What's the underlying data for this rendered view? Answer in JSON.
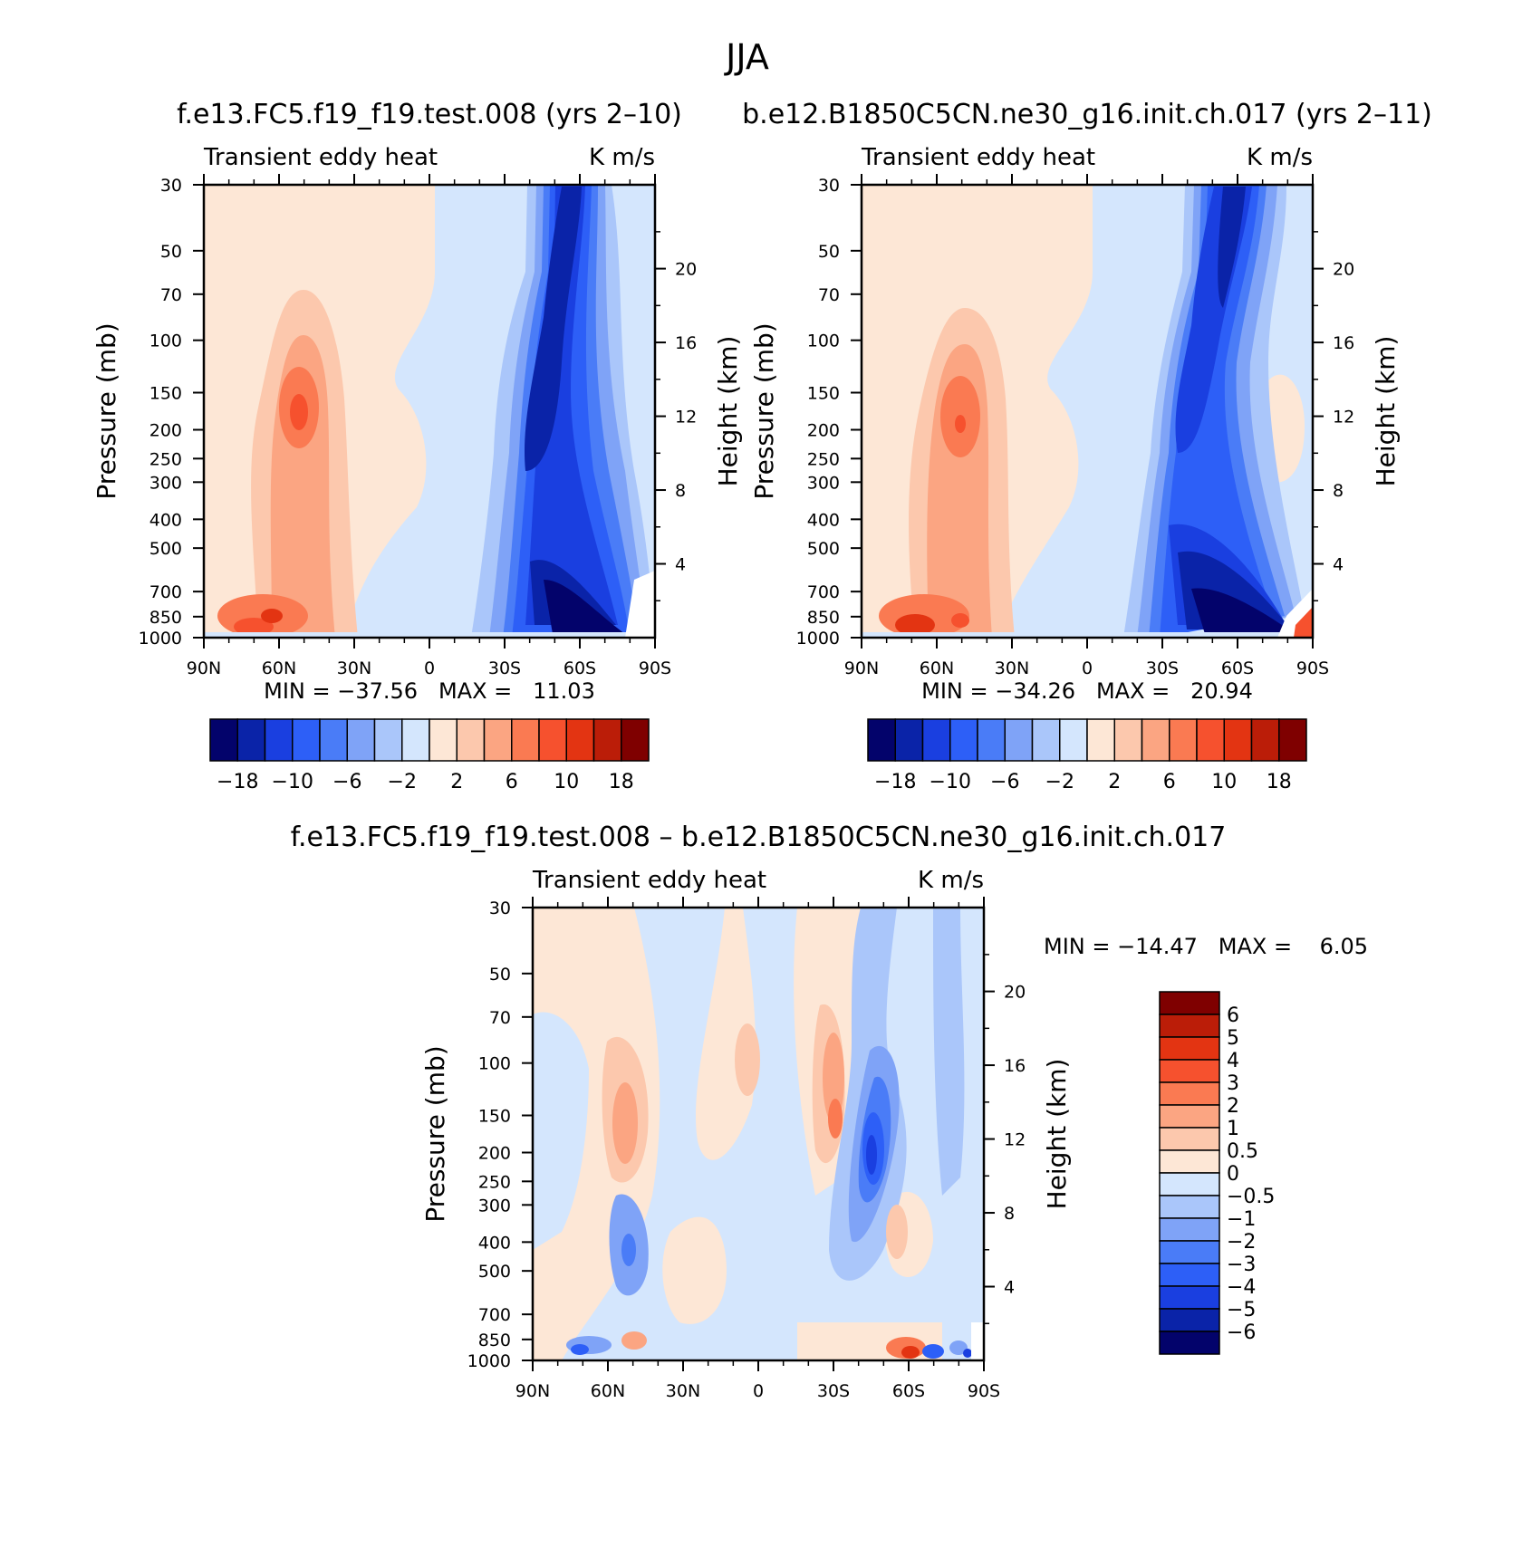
{
  "page": {
    "title": "JJA",
    "colors": {
      "frame": "#000000",
      "background": "#ffffff"
    }
  },
  "chart_data": [
    {
      "type": "heatmap",
      "name": "control",
      "title": "f.e13.FC5.f19_f19.test.008 (yrs 2–10)",
      "left_label": "Transient eddy heat",
      "right_label": "K m/s",
      "xlabel": "",
      "ylabel": "Pressure (mb)",
      "ylabel_right": "Height (km)",
      "x_ticks": [
        "90N",
        "60N",
        "30N",
        "0",
        "30S",
        "60S",
        "90S"
      ],
      "x_values": [
        90,
        60,
        30,
        0,
        -30,
        -60,
        -90
      ],
      "y_ticks": [
        "30",
        "50",
        "70",
        "100",
        "150",
        "200",
        "250",
        "300",
        "400",
        "500",
        "700",
        "850",
        "1000"
      ],
      "y_values": [
        30,
        50,
        70,
        100,
        150,
        200,
        250,
        300,
        400,
        500,
        700,
        850,
        1000
      ],
      "height_ticks": [
        "20",
        "16",
        "12",
        "8",
        "4"
      ],
      "height_values": [
        20,
        16,
        12,
        8,
        4
      ],
      "stats": "MIN = −37.56   MAX =   11.03",
      "min": -37.56,
      "max": 11.03,
      "colorbar": {
        "orientation": "horizontal",
        "labels": [
          "−18",
          "−10",
          "−6",
          "−2",
          "2",
          "6",
          "10",
          "18"
        ],
        "levels": [
          -22,
          -18,
          -14,
          -10,
          -8,
          -6,
          -4,
          -2,
          0,
          2,
          4,
          6,
          8,
          10,
          14,
          18,
          22
        ],
        "colors": [
          "#03036b",
          "#0a23a8",
          "#1a3fe0",
          "#2d5ff7",
          "#4a7cf7",
          "#7fa3f7",
          "#aac6fa",
          "#d4e6fd",
          "#fde7d6",
          "#fcc8ad",
          "#fba582",
          "#fa7a52",
          "#f6512e",
          "#e33412",
          "#bb1d08",
          "#7f0000"
        ]
      }
    },
    {
      "type": "heatmap",
      "name": "test",
      "title": "b.e12.B1850C5CN.ne30_g16.init.ch.017 (yrs 2–11)",
      "left_label": "Transient eddy heat",
      "right_label": "K m/s",
      "xlabel": "",
      "ylabel": "Pressure (mb)",
      "ylabel_right": "Height (km)",
      "x_ticks": [
        "90N",
        "60N",
        "30N",
        "0",
        "30S",
        "60S",
        "90S"
      ],
      "x_values": [
        90,
        60,
        30,
        0,
        -30,
        -60,
        -90
      ],
      "y_ticks": [
        "30",
        "50",
        "70",
        "100",
        "150",
        "200",
        "250",
        "300",
        "400",
        "500",
        "700",
        "850",
        "1000"
      ],
      "y_values": [
        30,
        50,
        70,
        100,
        150,
        200,
        250,
        300,
        400,
        500,
        700,
        850,
        1000
      ],
      "height_ticks": [
        "20",
        "16",
        "12",
        "8",
        "4"
      ],
      "height_values": [
        20,
        16,
        12,
        8,
        4
      ],
      "stats": "MIN = −34.26   MAX =   20.94",
      "min": -34.26,
      "max": 20.94,
      "colorbar": {
        "orientation": "horizontal",
        "labels": [
          "−18",
          "−10",
          "−6",
          "−2",
          "2",
          "6",
          "10",
          "18"
        ],
        "levels": [
          -22,
          -18,
          -14,
          -10,
          -8,
          -6,
          -4,
          -2,
          0,
          2,
          4,
          6,
          8,
          10,
          14,
          18,
          22
        ],
        "colors": [
          "#03036b",
          "#0a23a8",
          "#1a3fe0",
          "#2d5ff7",
          "#4a7cf7",
          "#7fa3f7",
          "#aac6fa",
          "#d4e6fd",
          "#fde7d6",
          "#fcc8ad",
          "#fba582",
          "#fa7a52",
          "#f6512e",
          "#e33412",
          "#bb1d08",
          "#7f0000"
        ]
      }
    },
    {
      "type": "heatmap",
      "name": "difference",
      "title": "f.e13.FC5.f19_f19.test.008 – b.e12.B1850C5CN.ne30_g16.init.ch.017",
      "left_label": "Transient eddy heat",
      "right_label": "K m/s",
      "xlabel": "",
      "ylabel": "Pressure (mb)",
      "ylabel_right": "Height (km)",
      "x_ticks": [
        "90N",
        "60N",
        "30N",
        "0",
        "30S",
        "60S",
        "90S"
      ],
      "x_values": [
        90,
        60,
        30,
        0,
        -30,
        -60,
        -90
      ],
      "y_ticks": [
        "30",
        "50",
        "70",
        "100",
        "150",
        "200",
        "250",
        "300",
        "400",
        "500",
        "700",
        "850",
        "1000"
      ],
      "y_values": [
        30,
        50,
        70,
        100,
        150,
        200,
        250,
        300,
        400,
        500,
        700,
        850,
        1000
      ],
      "height_ticks": [
        "20",
        "16",
        "12",
        "8",
        "4"
      ],
      "height_values": [
        20,
        16,
        12,
        8,
        4
      ],
      "stats": "MIN = −14.47   MAX =    6.05",
      "min": -14.47,
      "max": 6.05,
      "colorbar": {
        "orientation": "vertical",
        "labels": [
          "6",
          "5",
          "4",
          "3",
          "2",
          "1",
          "0.5",
          "0",
          "−0.5",
          "−1",
          "−2",
          "−3",
          "−4",
          "−5",
          "−6"
        ],
        "levels": [
          7,
          6,
          5,
          4,
          3,
          2,
          1,
          0.5,
          0,
          -0.5,
          -1,
          -2,
          -3,
          -4,
          -5,
          -6,
          -7
        ],
        "colors": [
          "#7f0000",
          "#bb1d08",
          "#e33412",
          "#f6512e",
          "#fa7a52",
          "#fba582",
          "#fcc8ad",
          "#fde7d6",
          "#d4e6fd",
          "#aac6fa",
          "#7fa3f7",
          "#4a7cf7",
          "#2d5ff7",
          "#1a3fe0",
          "#0a23a8",
          "#03036b"
        ]
      }
    }
  ]
}
